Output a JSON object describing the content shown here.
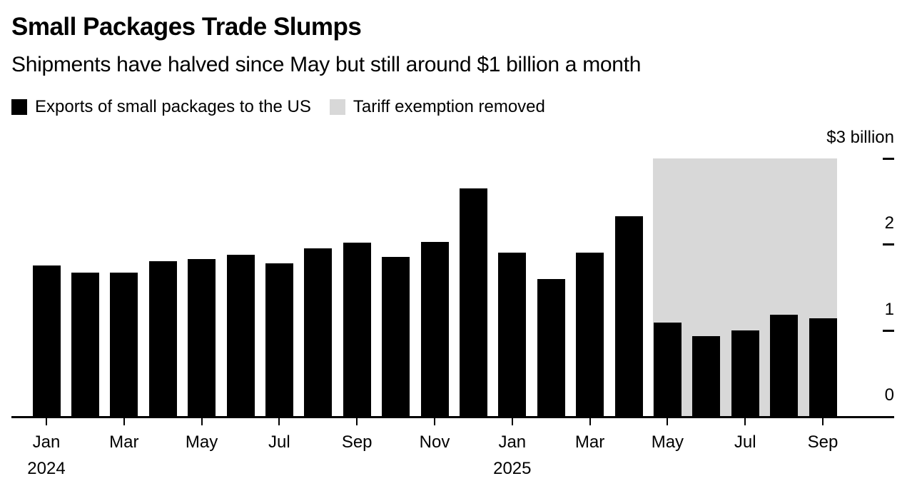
{
  "page": {
    "background": "#ffffff"
  },
  "chart_data": {
    "type": "bar",
    "title": "Small Packages Trade Slumps",
    "subtitle": "Shipments have halved since May but still around $1 billion a month",
    "ylabel": "",
    "unit": "billions of US dollars",
    "categories": [
      "Jan 2024",
      "Feb 2024",
      "Mar 2024",
      "Apr 2024",
      "May 2024",
      "Jun 2024",
      "Jul 2024",
      "Aug 2024",
      "Sep 2024",
      "Oct 2024",
      "Nov 2024",
      "Dec 2024",
      "Jan 2025",
      "Feb 2025",
      "Mar 2025",
      "Apr 2025",
      "May 2025",
      "Jun 2025",
      "Jul 2025",
      "Aug 2025",
      "Sep 2025"
    ],
    "series": [
      {
        "name": "Exports of small packages to the US",
        "values": [
          1.75,
          1.67,
          1.67,
          1.8,
          1.83,
          1.88,
          1.78,
          1.95,
          2.02,
          1.85,
          2.03,
          2.65,
          1.9,
          1.6,
          1.9,
          2.33,
          1.09,
          0.93,
          1.0,
          1.18,
          1.14
        ]
      }
    ],
    "ylim": [
      0,
      3
    ],
    "yticks": [
      0,
      1,
      2,
      3
    ],
    "ytick_top_label": "$3 billion",
    "xtick_every": 2,
    "year_labels": [
      {
        "text": "2024",
        "under": "Jan 2024"
      },
      {
        "text": "2025",
        "under": "Jan 2025"
      }
    ],
    "shaded_region": {
      "label": "Tariff exemption removed",
      "from": "May 2025",
      "to": "Sep 2025",
      "color": "#d8d8d8"
    },
    "bar_color": "#000000",
    "axis_color": "#000000",
    "grid": false,
    "legend_position": "top-left"
  },
  "legend": {
    "items": [
      {
        "label": "Exports of small packages to the US",
        "color": "#000000"
      },
      {
        "label": "Tariff exemption removed",
        "color": "#d8d8d8"
      }
    ]
  }
}
